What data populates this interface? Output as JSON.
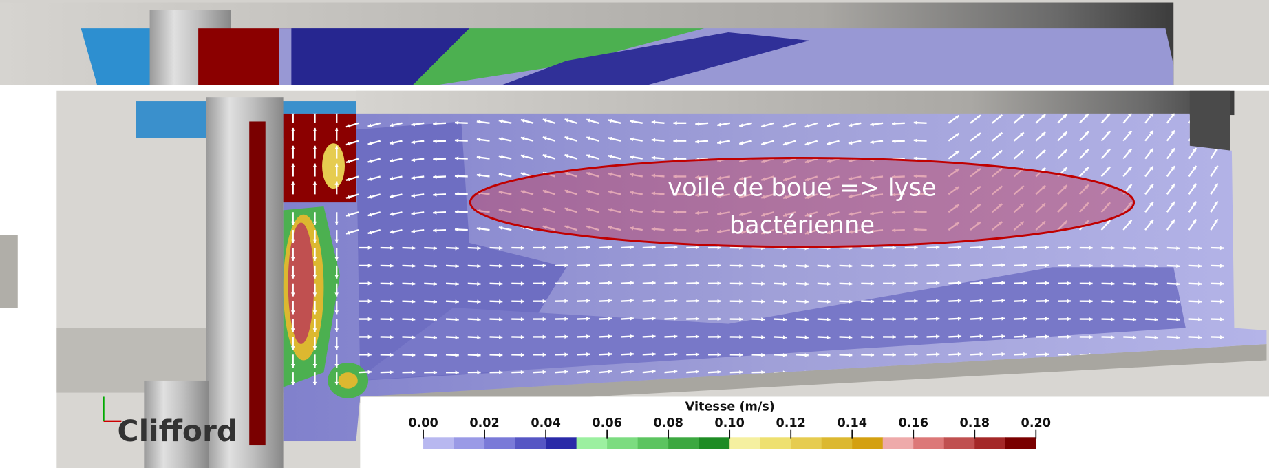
{
  "annotation": {
    "lines": [
      "voile de boue => lyse",
      "bactérienne"
    ]
  },
  "watermark": "Clifford",
  "colorbar": {
    "title": "Vitesse (m/s)",
    "range": [
      0,
      0.2
    ],
    "ticks": [
      {
        "value": 0,
        "label": "0.00"
      },
      {
        "value": 0.02,
        "label": "0.02"
      },
      {
        "value": 0.04,
        "label": "0.04"
      },
      {
        "value": 0.06,
        "label": "0.06"
      },
      {
        "value": 0.08,
        "label": "0.08"
      },
      {
        "value": 0.1,
        "label": "0.10"
      },
      {
        "value": 0.12,
        "label": "0.12"
      },
      {
        "value": 0.14,
        "label": "0.14"
      },
      {
        "value": 0.16,
        "label": "0.16"
      },
      {
        "value": 0.18,
        "label": "0.18"
      },
      {
        "value": 0.2,
        "label": "0.20"
      }
    ],
    "colors": [
      "#b8b8f0",
      "#9a9ae6",
      "#7a7ad8",
      "#5656c4",
      "#2a2aa8",
      "#9cf0a0",
      "#7cdc80",
      "#5cc460",
      "#3ca840",
      "#1e8c24",
      "#f5f0a0",
      "#eee070",
      "#e6cc50",
      "#dcb830",
      "#d4a010",
      "#eeaaaa",
      "#dc7878",
      "#c05050",
      "#a42828",
      "#7a0000"
    ]
  }
}
